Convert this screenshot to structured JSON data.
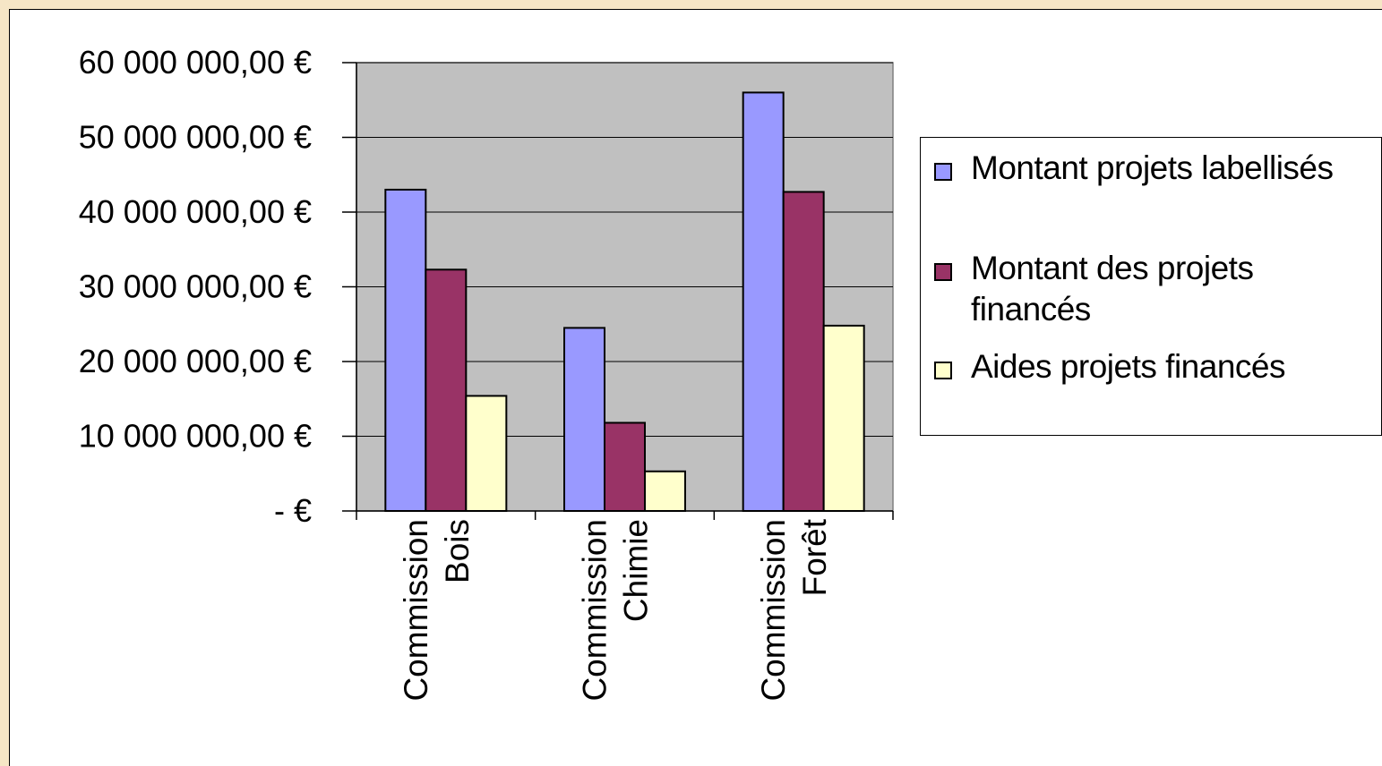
{
  "chart_data": {
    "type": "bar",
    "categories": [
      [
        "Commission",
        "Bois"
      ],
      [
        "Commission",
        "Chimie"
      ],
      [
        "Commission",
        "Forêt"
      ]
    ],
    "series": [
      {
        "name": "Montant projets labellisés",
        "color": "#9999ff",
        "values": [
          43000000,
          24500000,
          56000000
        ]
      },
      {
        "name": "Montant des projets financés",
        "color": "#993366",
        "values": [
          32300000,
          11800000,
          42700000
        ]
      },
      {
        "name": "Aides projets financés",
        "color": "#ffffcc",
        "values": [
          15400000,
          5300000,
          24800000
        ]
      }
    ],
    "ylim": [
      0,
      60000000
    ],
    "yticks": [
      0,
      10000000,
      20000000,
      30000000,
      40000000,
      50000000,
      60000000
    ],
    "ytick_labels": [
      "-     €",
      "10 000 000,00 €",
      "20 000 000,00 €",
      "30 000 000,00 €",
      "40 000 000,00 €",
      "50 000 000,00 €",
      "60 000 000,00 €"
    ],
    "plot_background": "#c0c0c0",
    "grid": true,
    "legend_position": "right"
  },
  "legend": {
    "items": [
      {
        "lines": [
          "Montant projets labellisés"
        ]
      },
      {
        "lines": [
          "Montant des projets",
          "financés"
        ]
      },
      {
        "lines": [
          "Aides projets financés"
        ]
      }
    ]
  }
}
